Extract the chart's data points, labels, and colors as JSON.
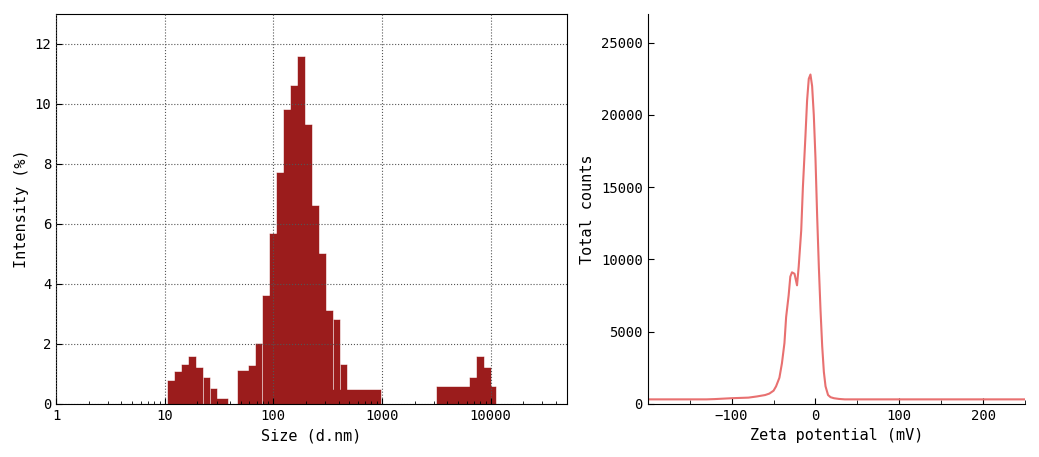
{
  "left_chart": {
    "xlabel": "Size (d.nm)",
    "ylabel": "Intensity (%)",
    "ylim": [
      0,
      13
    ],
    "yticks": [
      0,
      2,
      4,
      6,
      8,
      10,
      12
    ],
    "xlim_log": [
      1,
      50000
    ],
    "xticks_log": [
      1,
      10,
      100,
      1000,
      10000
    ],
    "bar_color": "#9b1c1c",
    "bar_edge_color": "#9b1c1c",
    "bars": [
      {
        "x_center": 11.5,
        "height": 0.75
      },
      {
        "x_center": 13.5,
        "height": 1.05
      },
      {
        "x_center": 15.5,
        "height": 1.3
      },
      {
        "x_center": 18.0,
        "height": 1.55
      },
      {
        "x_center": 21.0,
        "height": 1.2
      },
      {
        "x_center": 24.5,
        "height": 0.85
      },
      {
        "x_center": 28.5,
        "height": 0.5
      },
      {
        "x_center": 33.0,
        "height": 0.15
      },
      {
        "x_center": 55.0,
        "height": 1.1
      },
      {
        "x_center": 64.0,
        "height": 1.25
      },
      {
        "x_center": 74.0,
        "height": 2.0
      },
      {
        "x_center": 86.0,
        "height": 3.6
      },
      {
        "x_center": 100.0,
        "height": 5.65
      },
      {
        "x_center": 116.0,
        "height": 7.7
      },
      {
        "x_center": 135.0,
        "height": 9.8
      },
      {
        "x_center": 156.0,
        "height": 10.6
      },
      {
        "x_center": 182.0,
        "height": 11.55
      },
      {
        "x_center": 211.0,
        "height": 9.3
      },
      {
        "x_center": 245.0,
        "height": 6.6
      },
      {
        "x_center": 285.0,
        "height": 5.0
      },
      {
        "x_center": 330.0,
        "height": 3.1
      },
      {
        "x_center": 385.0,
        "height": 2.8
      },
      {
        "x_center": 447.0,
        "height": 1.3
      },
      {
        "x_center": 520.0,
        "height": 0.45
      },
      {
        "x_center": 6000.0,
        "height": 0.55
      },
      {
        "x_center": 7000.0,
        "height": 0.85
      },
      {
        "x_center": 8100.0,
        "height": 1.55
      },
      {
        "x_center": 9400.0,
        "height": 1.2
      }
    ]
  },
  "right_chart": {
    "xlabel": "Zeta potential (mV)",
    "ylabel": "Total counts",
    "xlim": [
      -200,
      250
    ],
    "ylim": [
      0,
      27000
    ],
    "yticks": [
      0,
      5000,
      10000,
      15000,
      20000,
      25000
    ],
    "xticks": [
      -100,
      0,
      100,
      200
    ],
    "line_color": "#e87070",
    "line_width": 1.5,
    "zeta_x": [
      -200,
      -150,
      -130,
      -120,
      -110,
      -100,
      -90,
      -80,
      -70,
      -60,
      -55,
      -50,
      -47,
      -43,
      -40,
      -37,
      -35,
      -32,
      -30,
      -28,
      -25,
      -22,
      -20,
      -17,
      -15,
      -12,
      -10,
      -8,
      -6,
      -4,
      -2,
      0,
      2,
      4,
      6,
      8,
      10,
      12,
      15,
      18,
      22,
      28,
      35,
      42,
      50,
      60,
      80,
      100,
      150,
      200,
      250
    ],
    "zeta_y": [
      300,
      300,
      300,
      320,
      350,
      380,
      400,
      420,
      500,
      600,
      700,
      900,
      1200,
      1800,
      2800,
      4200,
      6000,
      7500,
      8800,
      9100,
      9000,
      8200,
      9500,
      12000,
      15000,
      18500,
      21000,
      22500,
      22800,
      22000,
      20000,
      17000,
      13000,
      9500,
      6500,
      4000,
      2200,
      1200,
      600,
      450,
      380,
      330,
      300,
      300,
      300,
      300,
      300,
      300,
      300,
      300,
      300
    ]
  },
  "bg_color": "#ffffff",
  "font_family": "monospace"
}
